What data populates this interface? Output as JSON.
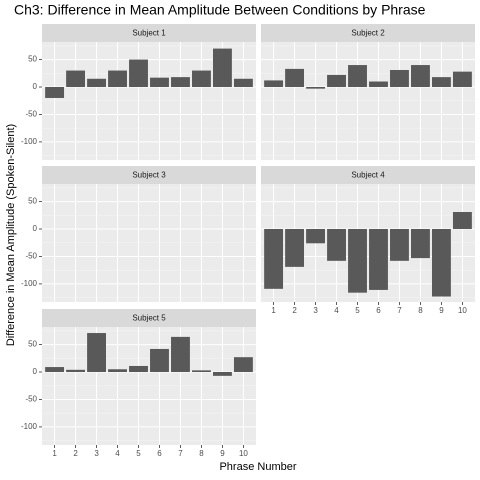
{
  "title": "Ch3: Difference in Mean Amplitude Between Conditions by Phrase",
  "x_label": "Phrase Number",
  "y_label": "Difference in Mean Amplitude (Spoken-Silent)",
  "chart_data": [
    {
      "type": "bar",
      "title": "Subject 1",
      "categories": [
        "1",
        "2",
        "3",
        "4",
        "5",
        "6",
        "7",
        "8",
        "9",
        "10"
      ],
      "values": [
        -20,
        30,
        15,
        30,
        50,
        17,
        18,
        30,
        70,
        15
      ],
      "color": "#595959",
      "xlim": [
        0.4,
        10.6
      ],
      "ylim": [
        -133,
        82
      ],
      "yticks": [
        -100,
        -50,
        0,
        50
      ],
      "yticks_minor": [
        -125,
        -75,
        -25,
        25,
        75
      ],
      "grid": true,
      "show_x_tick_labels": false,
      "show_y_tick_labels": true
    },
    {
      "type": "bar",
      "title": "Subject 2",
      "categories": [
        "1",
        "2",
        "3",
        "4",
        "5",
        "6",
        "7",
        "8",
        "9",
        "10"
      ],
      "values": [
        12,
        33,
        -3,
        22,
        40,
        10,
        31,
        40,
        18,
        28
      ],
      "color": "#595959",
      "xlim": [
        0.4,
        10.6
      ],
      "ylim": [
        -133,
        82
      ],
      "yticks": [
        -100,
        -50,
        0,
        50
      ],
      "yticks_minor": [
        -125,
        -75,
        -25,
        25,
        75
      ],
      "grid": true,
      "show_x_tick_labels": false,
      "show_y_tick_labels": false
    },
    {
      "type": "bar",
      "title": "Subject 3",
      "categories": [
        "1",
        "2",
        "3",
        "4",
        "5",
        "6",
        "7",
        "8",
        "9",
        "10"
      ],
      "values": [
        null,
        null,
        null,
        null,
        null,
        null,
        null,
        null,
        null,
        null
      ],
      "color": "#595959",
      "xlim": [
        0.4,
        10.6
      ],
      "ylim": [
        -133,
        82
      ],
      "yticks": [
        -100,
        -50,
        0,
        50
      ],
      "yticks_minor": [
        -125,
        -75,
        -25,
        25,
        75
      ],
      "grid": true,
      "show_x_tick_labels": false,
      "show_y_tick_labels": true
    },
    {
      "type": "bar",
      "title": "Subject 4",
      "categories": [
        "1",
        "2",
        "3",
        "4",
        "5",
        "6",
        "7",
        "8",
        "9",
        "10"
      ],
      "values": [
        -109,
        -69,
        -26,
        -58,
        -116,
        -111,
        -58,
        -53,
        -123,
        31
      ],
      "color": "#595959",
      "xlim": [
        0.4,
        10.6
      ],
      "ylim": [
        -133,
        82
      ],
      "yticks": [
        -100,
        -50,
        0,
        50
      ],
      "yticks_minor": [
        -125,
        -75,
        -25,
        25,
        75
      ],
      "grid": true,
      "show_x_tick_labels": true,
      "show_y_tick_labels": false
    },
    {
      "type": "bar",
      "title": "Subject 5",
      "categories": [
        "1",
        "2",
        "3",
        "4",
        "5",
        "6",
        "7",
        "8",
        "9",
        "10"
      ],
      "values": [
        9,
        4,
        71,
        5,
        11,
        42,
        64,
        3,
        -7,
        27
      ],
      "color": "#595959",
      "xlim": [
        0.4,
        10.6
      ],
      "ylim": [
        -133,
        82
      ],
      "yticks": [
        -100,
        -50,
        0,
        50
      ],
      "yticks_minor": [
        -125,
        -75,
        -25,
        25,
        75
      ],
      "grid": true,
      "show_x_tick_labels": true,
      "show_y_tick_labels": true
    }
  ]
}
